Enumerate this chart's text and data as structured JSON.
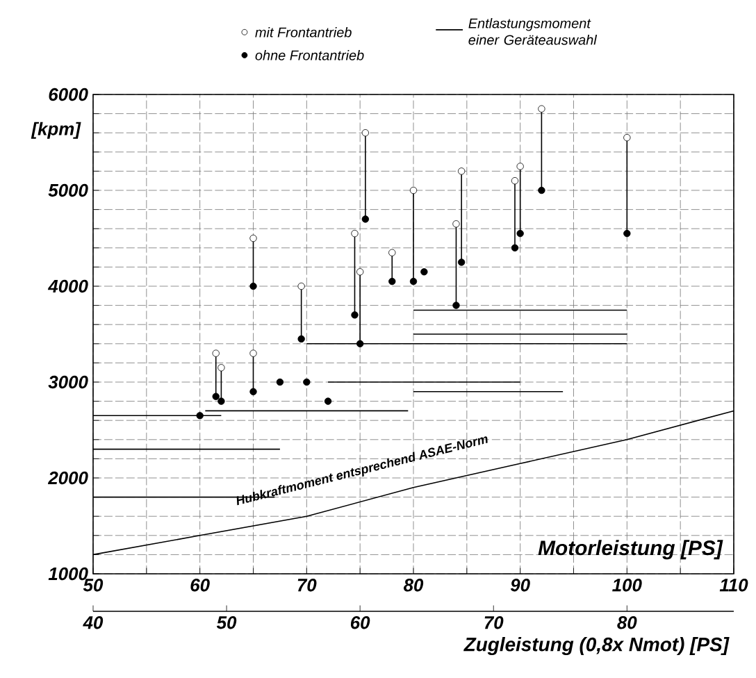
{
  "chart_data": {
    "type": "scatter",
    "xlabel": "Motorleistung [PS]",
    "ylabel": "[kpm]",
    "x2label": "Zugleistung (0,8x Nmot) [PS]",
    "xlim": [
      50,
      110
    ],
    "ylim": [
      1000,
      6000
    ],
    "x2lim": [
      40,
      88
    ],
    "xticks": [
      50,
      {
        "value": 55,
        "label": null
      },
      60,
      {
        "value": 65,
        "label": null
      },
      70,
      {
        "value": 75,
        "label": null
      },
      80,
      {
        "value": 85,
        "label": null
      },
      90,
      {
        "value": 95,
        "label": null
      },
      100,
      {
        "value": 105,
        "label": null
      },
      110
    ],
    "yticks": [
      1000,
      {
        "value": 1200,
        "label": null
      },
      {
        "value": 1400,
        "label": null
      },
      {
        "value": 1600,
        "label": null
      },
      {
        "value": 1800,
        "label": null
      },
      2000,
      {
        "value": 2200,
        "label": null
      },
      {
        "value": 2400,
        "label": null
      },
      {
        "value": 2600,
        "label": null
      },
      {
        "value": 2800,
        "label": null
      },
      3000,
      {
        "value": 3200,
        "label": null
      },
      {
        "value": 3400,
        "label": null
      },
      {
        "value": 3600,
        "label": null
      },
      {
        "value": 3800,
        "label": null
      },
      4000,
      {
        "value": 4200,
        "label": null
      },
      {
        "value": 4400,
        "label": null
      },
      {
        "value": 4600,
        "label": null
      },
      {
        "value": 4800,
        "label": null
      },
      5000,
      {
        "value": 5200,
        "label": null
      },
      {
        "value": 5400,
        "label": null
      },
      {
        "value": 5600,
        "label": null
      },
      {
        "value": 5800,
        "label": null
      },
      6000
    ],
    "x2ticks": [
      40,
      50,
      60,
      70,
      80
    ],
    "grid": true,
    "legend": "top",
    "annotations": [
      "Hubkraftmoment entsprechend ASAE-Norm"
    ],
    "series": [
      {
        "name": "Entlastungsmoment einer Geräteauswahl",
        "type": "line",
        "color": "#000000",
        "x": [
          80,
          100
        ],
        "values": [
          3750,
          3750
        ]
      },
      {
        "type": "line",
        "color": "#000000",
        "x": [
          80,
          100
        ],
        "values": [
          3500,
          3500
        ]
      },
      {
        "type": "line",
        "color": "#000000",
        "x": [
          70,
          100
        ],
        "values": [
          3400,
          3400
        ]
      },
      {
        "type": "line",
        "color": "#000000",
        "x": [
          72,
          90
        ],
        "values": [
          3000,
          3000
        ]
      },
      {
        "type": "line",
        "color": "#000000",
        "x": [
          80,
          94
        ],
        "values": [
          2900,
          2900
        ]
      },
      {
        "type": "line",
        "color": "#000000",
        "x": [
          60.5,
          79.5
        ],
        "values": [
          2700,
          2700
        ]
      },
      {
        "type": "line",
        "color": "#000000",
        "x": [
          50,
          62
        ],
        "values": [
          2650,
          2650
        ]
      },
      {
        "type": "line",
        "color": "#000000",
        "x": [
          50,
          67.5
        ],
        "values": [
          2300,
          2300
        ]
      },
      {
        "type": "line",
        "color": "#000000",
        "x": [
          50,
          67
        ],
        "values": [
          1800,
          1800
        ]
      },
      {
        "type": "line",
        "color": "#000000",
        "x": [
          65,
          65
        ],
        "values": [
          4000,
          4500
        ]
      },
      {
        "type": "line",
        "color": "#000000",
        "x": [
          69.5,
          69.5
        ],
        "values": [
          3450,
          4000
        ]
      },
      {
        "type": "line",
        "color": "#000000",
        "x": [
          74.5,
          74.5
        ],
        "values": [
          3700,
          4550
        ]
      },
      {
        "type": "line",
        "color": "#000000",
        "x": [
          75.5,
          75.5
        ],
        "values": [
          4700,
          5600
        ]
      },
      {
        "type": "line",
        "color": "#000000",
        "x": [
          75,
          75
        ],
        "values": [
          3400,
          4150
        ]
      },
      {
        "type": "line",
        "color": "#000000",
        "x": [
          78,
          78
        ],
        "values": [
          4050,
          4350
        ]
      },
      {
        "type": "line",
        "color": "#000000",
        "x": [
          80,
          80
        ],
        "values": [
          4050,
          5000
        ]
      },
      {
        "type": "line",
        "color": "#000000",
        "x": [
          84,
          84
        ],
        "values": [
          3800,
          4650
        ]
      },
      {
        "type": "line",
        "color": "#000000",
        "x": [
          84.5,
          84.5
        ],
        "values": [
          4250,
          5200
        ]
      },
      {
        "type": "line",
        "color": "#000000",
        "x": [
          89.5,
          89.5
        ],
        "values": [
          4400,
          5100
        ]
      },
      {
        "type": "line",
        "color": "#000000",
        "x": [
          90,
          90
        ],
        "values": [
          4550,
          5250
        ]
      },
      {
        "type": "line",
        "color": "#000000",
        "x": [
          92,
          92
        ],
        "values": [
          5000,
          5850
        ]
      },
      {
        "type": "line",
        "color": "#000000",
        "x": [
          100,
          100
        ],
        "values": [
          4550,
          5550
        ]
      },
      {
        "type": "line",
        "color": "#000000",
        "x": [
          61.5,
          61.5
        ],
        "values": [
          2850,
          3300
        ]
      },
      {
        "type": "line",
        "color": "#000000",
        "x": [
          62,
          62
        ],
        "values": [
          2800,
          3150
        ]
      },
      {
        "type": "line",
        "color": "#000000",
        "x": [
          65,
          65
        ],
        "values": [
          2900,
          3300
        ]
      },
      {
        "type": "line",
        "color": "#000000",
        "x": [
          50,
          60,
          70,
          80,
          90,
          100,
          110
        ],
        "values": [
          1200,
          1400,
          1600,
          1900,
          2150,
          2400,
          2700
        ]
      },
      {
        "name": "mit Frontantrieb",
        "color": "#ffffff",
        "marker": "circle",
        "x": [
          65,
          69.5,
          74.5,
          75.5,
          75,
          78,
          80,
          84,
          84.5,
          89.5,
          90,
          92,
          100,
          61.5,
          62,
          65
        ],
        "values": [
          4500,
          4000,
          4550,
          5600,
          4150,
          4350,
          5000,
          4650,
          5200,
          5100,
          5250,
          5850,
          5550,
          3300,
          3150,
          3300
        ]
      },
      {
        "name": "ohne Frontantrieb",
        "color": "#000000",
        "marker": "circle",
        "x": [
          65,
          69.5,
          74.5,
          75.5,
          75,
          78,
          80,
          81,
          84,
          84.5,
          89.5,
          90,
          92,
          100,
          61.5,
          62,
          65,
          67.5,
          70,
          72,
          60
        ],
        "values": [
          4000,
          3450,
          3700,
          4700,
          3400,
          4050,
          4050,
          4150,
          3800,
          4250,
          4400,
          4550,
          5000,
          4550,
          2850,
          2800,
          2900,
          3000,
          3000,
          2800,
          2650
        ]
      }
    ]
  }
}
